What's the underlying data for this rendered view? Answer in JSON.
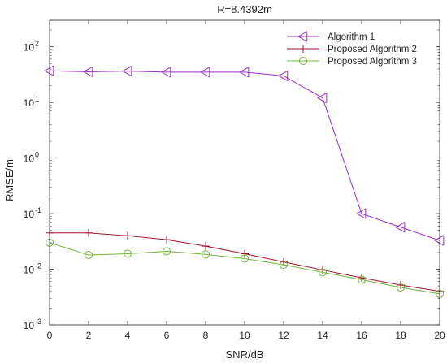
{
  "chart_data": {
    "type": "line",
    "title": "R=8.4392m",
    "xlabel": "SNR/dB",
    "ylabel": "RMSE/m",
    "x": [
      0,
      2,
      4,
      6,
      8,
      10,
      12,
      14,
      16,
      18,
      20
    ],
    "xlim": [
      0,
      20
    ],
    "ylim": [
      0.001,
      300
    ],
    "yscale": "log",
    "x_ticks": [
      "0",
      "2",
      "4",
      "6",
      "8",
      "10",
      "12",
      "14",
      "16",
      "18",
      "20"
    ],
    "y_ticks": [
      {
        "value": 0.001,
        "base": "10",
        "exp": "-3"
      },
      {
        "value": 0.01,
        "base": "10",
        "exp": "-2"
      },
      {
        "value": 0.1,
        "base": "10",
        "exp": "-1"
      },
      {
        "value": 1,
        "base": "10",
        "exp": "0"
      },
      {
        "value": 10,
        "base": "10",
        "exp": "1"
      },
      {
        "value": 100,
        "base": "10",
        "exp": "2"
      }
    ],
    "grid": false,
    "legend_position": "top-right",
    "series": [
      {
        "name": "Algorithm 1",
        "color": "#9b30c4",
        "marker": "triangle-left",
        "values": [
          37,
          35.5,
          36.5,
          35,
          35,
          35,
          30,
          12,
          0.1,
          0.057,
          0.033
        ]
      },
      {
        "name": "Proposed Algorithm 2",
        "color": "#a0132c",
        "marker": "plus",
        "values": [
          0.045,
          0.045,
          0.04,
          0.034,
          0.026,
          0.019,
          0.0135,
          0.0097,
          0.007,
          0.0052,
          0.004
        ]
      },
      {
        "name": "Proposed Algorithm 3",
        "color": "#72b43a",
        "marker": "circle",
        "values": [
          0.03,
          0.018,
          0.019,
          0.021,
          0.0185,
          0.0155,
          0.012,
          0.0088,
          0.0065,
          0.0047,
          0.0036
        ]
      }
    ]
  }
}
